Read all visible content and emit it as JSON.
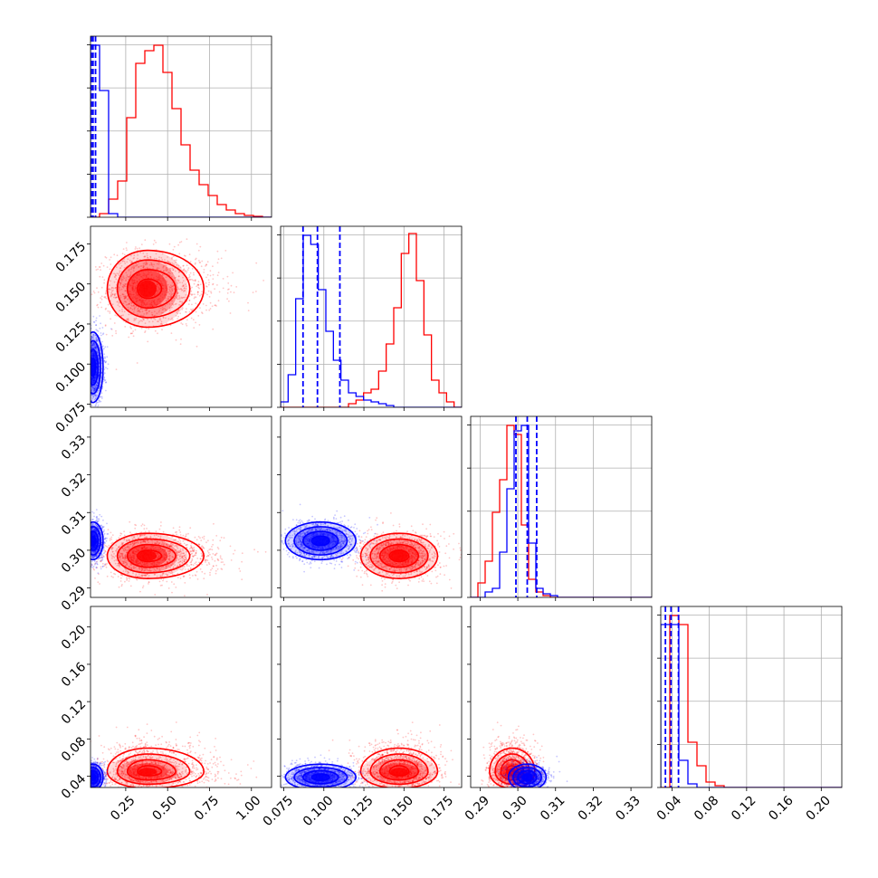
{
  "chart_data": {
    "type": "corner",
    "parameters": [
      {
        "range": [
          0.04,
          1.12
        ],
        "ticks": [
          0.25,
          0.5,
          0.75,
          1.0
        ],
        "tick_labels": [
          "0.25",
          "0.50",
          "0.75",
          "1.00"
        ]
      },
      {
        "range": [
          0.073,
          0.186
        ],
        "ticks": [
          0.075,
          0.1,
          0.125,
          0.15,
          0.175
        ],
        "tick_labels": [
          "0.075",
          "0.100",
          "0.125",
          "0.150",
          "0.175"
        ]
      },
      {
        "range": [
          0.2875,
          0.3355
        ],
        "ticks": [
          0.29,
          0.3,
          0.31,
          0.32,
          0.33
        ],
        "tick_labels": [
          "0.29",
          "0.30",
          "0.31",
          "0.32",
          "0.33"
        ]
      },
      {
        "range": [
          0.028,
          0.222
        ],
        "ticks": [
          0.04,
          0.08,
          0.12,
          0.16,
          0.2
        ],
        "tick_labels": [
          "0.04",
          "0.08",
          "0.12",
          "0.16",
          "0.20"
        ]
      }
    ],
    "series": [
      {
        "color": "#ff0000",
        "means": [
          0.38,
          0.147,
          0.2985,
          0.045
        ],
        "stds": [
          0.12,
          0.012,
          0.003,
          0.009
        ],
        "skew": [
          true,
          false,
          false,
          true
        ],
        "quantiles": [
          [],
          [],
          [],
          []
        ],
        "hist_heights": [
          [
            0,
            0.02,
            0.1,
            0.2,
            0.55,
            0.85,
            0.92,
            0.95,
            0.8,
            0.6,
            0.4,
            0.26,
            0.18,
            0.12,
            0.07,
            0.04,
            0.02,
            0.01,
            0.005,
            0
          ],
          [
            0,
            0,
            0,
            0,
            0,
            0,
            0,
            0,
            0,
            0.02,
            0.04,
            0.08,
            0.1,
            0.2,
            0.35,
            0.55,
            0.85,
            0.96,
            0.7,
            0.4,
            0.15,
            0.08,
            0.03,
            0
          ],
          [
            0,
            0.08,
            0.2,
            0.47,
            0.65,
            0.95,
            0.9,
            0.4,
            0.1,
            0.03,
            0.01,
            0,
            0,
            0,
            0,
            0,
            0,
            0,
            0,
            0,
            0,
            0,
            0,
            0,
            0
          ],
          [
            0,
            0.95,
            0.9,
            0.25,
            0.12,
            0.03,
            0.01,
            0,
            0,
            0,
            0,
            0,
            0,
            0,
            0,
            0,
            0,
            0,
            0,
            0
          ]
        ]
      },
      {
        "color": "#0000ff",
        "means": [
          0.055,
          0.098,
          0.3025,
          0.039
        ],
        "stds": [
          0.03,
          0.011,
          0.0025,
          0.007
        ],
        "skew": [
          false,
          false,
          false,
          false
        ],
        "quantiles": [
          [
            0.045,
            0.055,
            0.07
          ],
          [
            0.087,
            0.096,
            0.11
          ],
          [
            0.2995,
            0.3025,
            0.305
          ],
          [
            0.033,
            0.039,
            0.047
          ]
        ],
        "hist_heights": [
          [
            0.95,
            0.7,
            0.02,
            0,
            0,
            0,
            0,
            0,
            0,
            0,
            0,
            0,
            0,
            0,
            0,
            0,
            0,
            0,
            0,
            0
          ],
          [
            0.03,
            0.18,
            0.6,
            0.95,
            0.9,
            0.65,
            0.42,
            0.26,
            0.15,
            0.08,
            0.06,
            0.04,
            0.03,
            0.02,
            0.01,
            0,
            0,
            0,
            0,
            0,
            0,
            0,
            0,
            0
          ],
          [
            0,
            0,
            0.03,
            0.05,
            0.25,
            0.6,
            0.92,
            0.95,
            0.3,
            0.05,
            0.02,
            0.01,
            0,
            0,
            0,
            0,
            0,
            0,
            0,
            0,
            0,
            0,
            0,
            0,
            0
          ],
          [
            0.9,
            0.9,
            0.15,
            0.02,
            0,
            0,
            0,
            0,
            0,
            0,
            0,
            0,
            0,
            0,
            0,
            0,
            0,
            0,
            0,
            0
          ]
        ]
      }
    ],
    "grid": true,
    "legend": "none"
  }
}
